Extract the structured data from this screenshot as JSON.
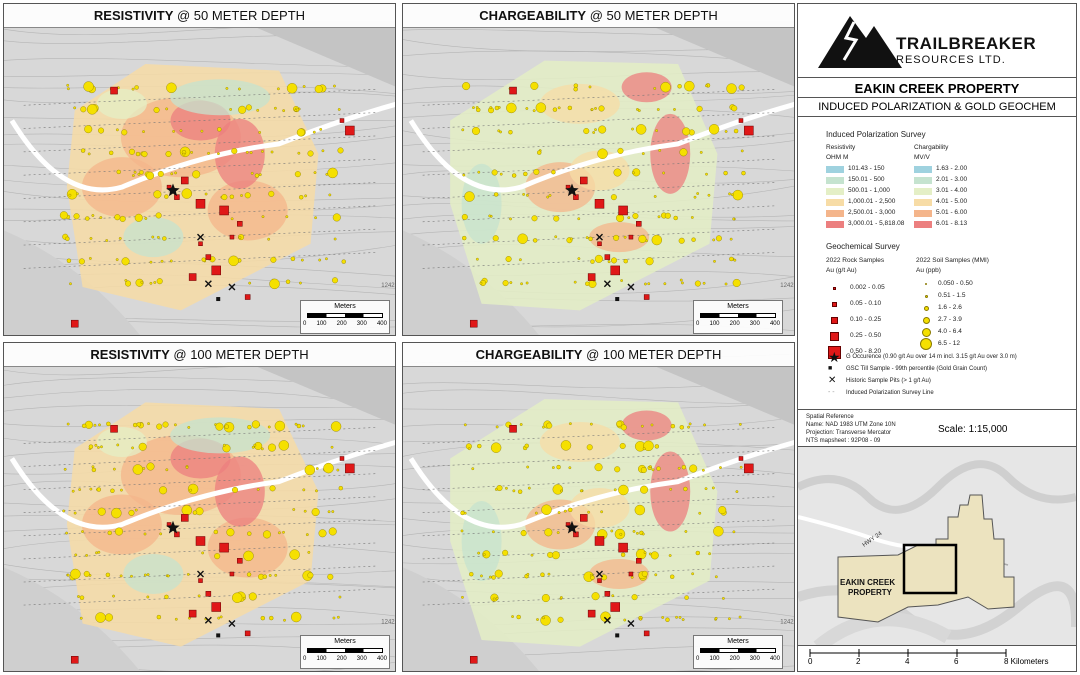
{
  "panels": [
    {
      "title_bold": "RESISTIVITY",
      "title_rest": " @ 50 METER DEPTH",
      "type": "resistivity"
    },
    {
      "title_bold": "CHARGEABILITY",
      "title_rest": " @ 50 METER DEPTH",
      "type": "chargeability"
    },
    {
      "title_bold": "RESISTIVITY",
      "title_rest": " @ 100 METER DEPTH",
      "type": "resistivity"
    },
    {
      "title_bold": "CHARGEABILITY",
      "title_rest": " @ 100 METER DEPTH",
      "type": "chargeability"
    }
  ],
  "scalebar": {
    "title": "Meters",
    "ticks": [
      "0",
      "100",
      "200",
      "300",
      "400"
    ]
  },
  "contour_label": "1242",
  "logo": {
    "name": "TRAILBREAKER",
    "sub": "RESOURCES LTD."
  },
  "property_title": "EAKIN CREEK PROPERTY",
  "property_sub": "INDUCED POLARIZATION & GOLD GEOCHEM",
  "legend": {
    "ip_header": "Induced Polarization Survey",
    "resistivity_header": "Resistivity",
    "resistivity_unit": "OHM M",
    "chargeability_header": "Chargability",
    "chargeability_unit": "MV/V",
    "resistivity_classes": [
      {
        "label": "101.43 - 150",
        "color": "#9fd2df"
      },
      {
        "label": "150.01 - 500",
        "color": "#c5e3cf"
      },
      {
        "label": "500.01 - 1,000",
        "color": "#e4efc6"
      },
      {
        "label": "1,000.01 - 2,500",
        "color": "#f7dca6"
      },
      {
        "label": "2,500.01 - 3,000",
        "color": "#f4b58b"
      },
      {
        "label": "3,000.01 - 5,818.08",
        "color": "#ec7f7f"
      }
    ],
    "chargeability_classes": [
      {
        "label": "1.63 - 2.00",
        "color": "#9fd2df"
      },
      {
        "label": "2.01 - 3.00",
        "color": "#c5e3cf"
      },
      {
        "label": "3.01 - 4.00",
        "color": "#e4efc6"
      },
      {
        "label": "4.01 - 5.00",
        "color": "#f7dca6"
      },
      {
        "label": "5.01 - 6.00",
        "color": "#f4b58b"
      },
      {
        "label": "6.01 - 8.13",
        "color": "#ec7f7f"
      }
    ],
    "geochem_header": "Geochemical Survey",
    "rock_header": "2022 Rock Samples",
    "rock_unit": "Au (g/t Au)",
    "soil_header": "2022 Soil Samples (MMI)",
    "soil_unit": "Au (ppb)",
    "rock_classes": [
      "0.002 - 0.05",
      "0.05 - 0.10",
      "0.10 - 0.25",
      "0.25 - 0.50",
      "0.50 - 8.20"
    ],
    "soil_classes": [
      "0.050 - 0.50",
      "0.51 - 1.5",
      "1.6 - 2.6",
      "2.7 - 3.9",
      "4.0 - 6.4",
      "6.5 - 12"
    ],
    "symbols": [
      {
        "icon": "star-icon",
        "label": "G Occurence (0.90 g/t Au over 14 m incl. 3.15 g/t Au over 3.0 m)"
      },
      {
        "icon": "square-icon",
        "label": "GSC Till Sample - 99th percentile (Gold Grain Count)"
      },
      {
        "icon": "cross-icon",
        "label": "Historic Sample Pits (> 1 g/t Au)"
      },
      {
        "icon": "dash-line-icon",
        "label": "Induced Polarization Survey Line"
      }
    ]
  },
  "spatial_reference": {
    "title": "Spatial Reference",
    "name": "Name: NAD 1983 UTM Zone 10N",
    "projection": "Projection: Transverse Mercator",
    "nts": "NTS mapsheet : 92P08 - 09"
  },
  "scale_text": "Scale: 1:15,000",
  "location_map": {
    "highway": "HWY 24",
    "property_label_1": "EAKIN CREEK",
    "property_label_2": "PROPERTY",
    "km_ticks": [
      "0",
      "2",
      "4",
      "6",
      "8 Kilometers"
    ]
  },
  "colors": {
    "rock": "#e01818",
    "soil": "#f5e000",
    "soil_stroke": "#8a7a00"
  }
}
